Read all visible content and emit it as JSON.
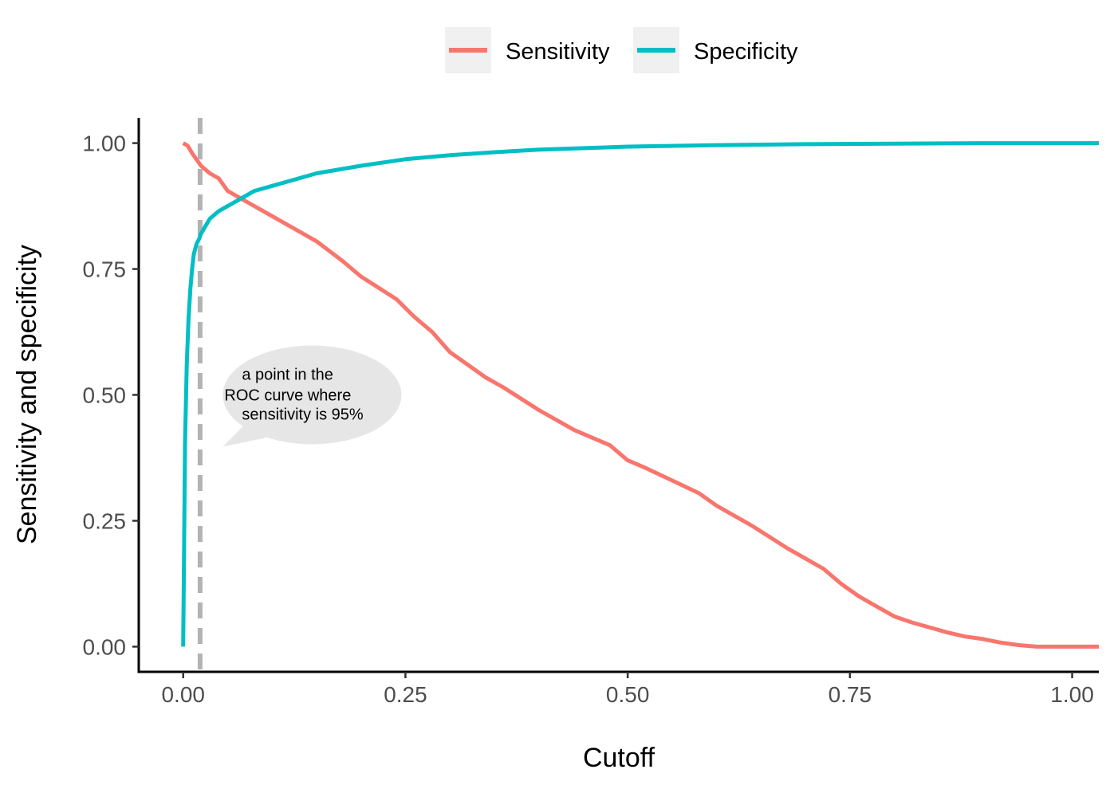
{
  "chart_data": {
    "type": "line",
    "xlabel": "Cutoff",
    "ylabel": "Sensitivity and specificity",
    "xlim": [
      -0.05,
      1.03
    ],
    "ylim": [
      -0.05,
      1.05
    ],
    "x_ticks": [
      "0.00",
      "0.25",
      "0.50",
      "0.75",
      "1.00"
    ],
    "y_ticks": [
      "0.00",
      "0.25",
      "0.50",
      "0.75",
      "1.00"
    ],
    "grid": false,
    "legend_position": "top",
    "reference_line": {
      "x": 0.019,
      "style": "dashed",
      "color": "#b3b3b3"
    },
    "annotation": {
      "lines": [
        "a point in the",
        "ROC curve where",
        "sensitivity is 95%"
      ],
      "x": 0.145,
      "y": 0.5
    },
    "series": [
      {
        "name": "Sensitivity",
        "color": "#F8766D",
        "x": [
          0.0,
          0.005,
          0.01,
          0.02,
          0.03,
          0.04,
          0.05,
          0.06,
          0.08,
          0.1,
          0.12,
          0.15,
          0.18,
          0.2,
          0.24,
          0.26,
          0.28,
          0.3,
          0.32,
          0.34,
          0.36,
          0.4,
          0.44,
          0.46,
          0.48,
          0.5,
          0.52,
          0.55,
          0.58,
          0.6,
          0.64,
          0.68,
          0.72,
          0.74,
          0.76,
          0.78,
          0.8,
          0.82,
          0.84,
          0.86,
          0.88,
          0.9,
          0.92,
          0.94,
          0.96,
          0.98,
          1.0,
          1.03
        ],
        "y": [
          1.0,
          0.995,
          0.98,
          0.955,
          0.94,
          0.93,
          0.905,
          0.895,
          0.875,
          0.855,
          0.835,
          0.805,
          0.765,
          0.735,
          0.69,
          0.655,
          0.625,
          0.585,
          0.56,
          0.535,
          0.515,
          0.47,
          0.43,
          0.415,
          0.4,
          0.37,
          0.355,
          0.33,
          0.305,
          0.28,
          0.24,
          0.195,
          0.155,
          0.125,
          0.1,
          0.08,
          0.06,
          0.048,
          0.038,
          0.028,
          0.02,
          0.015,
          0.008,
          0.003,
          0.0,
          0.0,
          0.0,
          0.0
        ]
      },
      {
        "name": "Specificity",
        "color": "#00BFC4",
        "x": [
          0.0,
          0.001,
          0.002,
          0.004,
          0.006,
          0.008,
          0.01,
          0.012,
          0.015,
          0.018,
          0.02,
          0.025,
          0.03,
          0.04,
          0.05,
          0.06,
          0.07,
          0.08,
          0.1,
          0.12,
          0.15,
          0.2,
          0.25,
          0.3,
          0.35,
          0.4,
          0.5,
          0.6,
          0.7,
          0.8,
          0.9,
          1.0,
          1.03
        ],
        "y": [
          0.0,
          0.2,
          0.4,
          0.56,
          0.65,
          0.71,
          0.75,
          0.78,
          0.8,
          0.81,
          0.82,
          0.835,
          0.85,
          0.865,
          0.875,
          0.885,
          0.895,
          0.905,
          0.915,
          0.925,
          0.94,
          0.955,
          0.968,
          0.976,
          0.982,
          0.987,
          0.993,
          0.996,
          0.998,
          0.999,
          1.0,
          1.0,
          1.0
        ]
      }
    ]
  }
}
